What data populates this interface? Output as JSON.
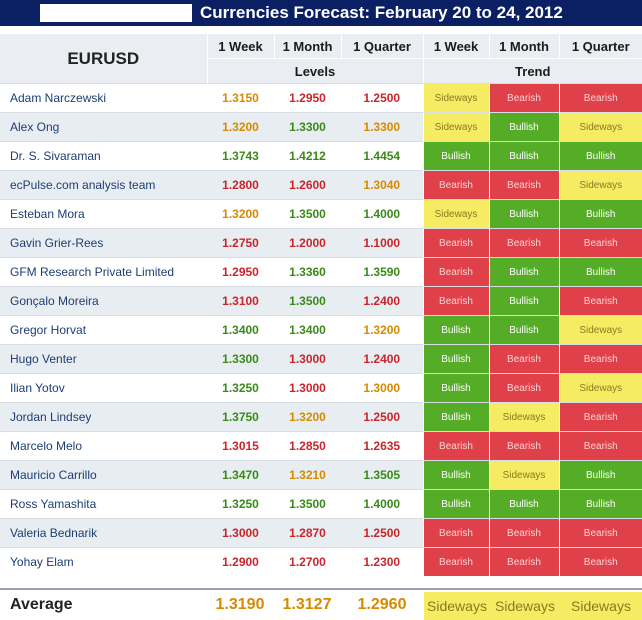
{
  "title": "Currencies Forecast: February 20 to 24, 2012",
  "pair": "EURUSD",
  "periods": [
    "1 Week",
    "1 Month",
    "1 Quarter"
  ],
  "levels_label": "Levels",
  "trend_label": "Trend",
  "rows": [
    {
      "name": "Adam Narczewski",
      "levels": [
        "1.3150",
        "1.2950",
        "1.2500"
      ],
      "level_colors": [
        "orange",
        "red",
        "red"
      ],
      "trends": [
        "Sideways",
        "Bearish",
        "Bearish"
      ]
    },
    {
      "name": "Alex Ong",
      "levels": [
        "1.3200",
        "1.3300",
        "1.3300"
      ],
      "level_colors": [
        "orange",
        "green",
        "orange"
      ],
      "trends": [
        "Sideways",
        "Bullish",
        "Sideways"
      ]
    },
    {
      "name": "Dr. S. Sivaraman",
      "levels": [
        "1.3743",
        "1.4212",
        "1.4454"
      ],
      "level_colors": [
        "green",
        "green",
        "green"
      ],
      "trends": [
        "Bullish",
        "Bullish",
        "Bullish"
      ]
    },
    {
      "name": "ecPulse.com analysis team",
      "levels": [
        "1.2800",
        "1.2600",
        "1.3040"
      ],
      "level_colors": [
        "red",
        "red",
        "orange"
      ],
      "trends": [
        "Bearish",
        "Bearish",
        "Sideways"
      ]
    },
    {
      "name": "Esteban Mora",
      "levels": [
        "1.3200",
        "1.3500",
        "1.4000"
      ],
      "level_colors": [
        "orange",
        "green",
        "green"
      ],
      "trends": [
        "Sideways",
        "Bullish",
        "Bullish"
      ]
    },
    {
      "name": "Gavin Grier-Rees",
      "levels": [
        "1.2750",
        "1.2000",
        "1.1000"
      ],
      "level_colors": [
        "red",
        "red",
        "red"
      ],
      "trends": [
        "Bearish",
        "Bearish",
        "Bearish"
      ]
    },
    {
      "name": "GFM Research Private Limited",
      "levels": [
        "1.2950",
        "1.3360",
        "1.3590"
      ],
      "level_colors": [
        "red",
        "green",
        "green"
      ],
      "trends": [
        "Bearish",
        "Bullish",
        "Bullish"
      ]
    },
    {
      "name": "Gonçalo Moreira",
      "levels": [
        "1.3100",
        "1.3500",
        "1.2400"
      ],
      "level_colors": [
        "red",
        "green",
        "red"
      ],
      "trends": [
        "Bearish",
        "Bullish",
        "Bearish"
      ]
    },
    {
      "name": "Gregor Horvat",
      "levels": [
        "1.3400",
        "1.3400",
        "1.3200"
      ],
      "level_colors": [
        "green",
        "green",
        "orange"
      ],
      "trends": [
        "Bullish",
        "Bullish",
        "Sideways"
      ]
    },
    {
      "name": "Hugo Venter",
      "levels": [
        "1.3300",
        "1.3000",
        "1.2400"
      ],
      "level_colors": [
        "green",
        "red",
        "red"
      ],
      "trends": [
        "Bullish",
        "Bearish",
        "Bearish"
      ]
    },
    {
      "name": "Ilian Yotov",
      "levels": [
        "1.3250",
        "1.3000",
        "1.3000"
      ],
      "level_colors": [
        "green",
        "red",
        "orange"
      ],
      "trends": [
        "Bullish",
        "Bearish",
        "Sideways"
      ]
    },
    {
      "name": "Jordan Lindsey",
      "levels": [
        "1.3750",
        "1.3200",
        "1.2500"
      ],
      "level_colors": [
        "green",
        "orange",
        "red"
      ],
      "trends": [
        "Bullish",
        "Sideways",
        "Bearish"
      ]
    },
    {
      "name": "Marcelo Melo",
      "levels": [
        "1.3015",
        "1.2850",
        "1.2635"
      ],
      "level_colors": [
        "red",
        "red",
        "red"
      ],
      "trends": [
        "Bearish",
        "Bearish",
        "Bearish"
      ]
    },
    {
      "name": "Mauricio Carrillo",
      "levels": [
        "1.3470",
        "1.3210",
        "1.3505"
      ],
      "level_colors": [
        "green",
        "orange",
        "green"
      ],
      "trends": [
        "Bullish",
        "Sideways",
        "Bullish"
      ]
    },
    {
      "name": "Ross Yamashita",
      "levels": [
        "1.3250",
        "1.3500",
        "1.4000"
      ],
      "level_colors": [
        "green",
        "green",
        "green"
      ],
      "trends": [
        "Bullish",
        "Bullish",
        "Bullish"
      ]
    },
    {
      "name": "Valeria Bednarik",
      "levels": [
        "1.3000",
        "1.2870",
        "1.2500"
      ],
      "level_colors": [
        "red",
        "red",
        "red"
      ],
      "trends": [
        "Bearish",
        "Bearish",
        "Bearish"
      ]
    },
    {
      "name": "Yohay Elam",
      "levels": [
        "1.2900",
        "1.2700",
        "1.2300"
      ],
      "level_colors": [
        "red",
        "red",
        "red"
      ],
      "trends": [
        "Bearish",
        "Bearish",
        "Bearish"
      ]
    }
  ],
  "average": {
    "label": "Average",
    "levels": [
      "1.3190",
      "1.3127",
      "1.2960"
    ],
    "trends": [
      "Sideways",
      "Sideways",
      "Sideways"
    ]
  },
  "colors": {
    "header_bar": "#0b1f63",
    "bullish": "#55ad27",
    "bearish": "#e0404a",
    "sideways": "#f6ec64",
    "level_orange": "#d68a00",
    "level_red": "#c9252c",
    "level_green": "#3a8a1a"
  }
}
